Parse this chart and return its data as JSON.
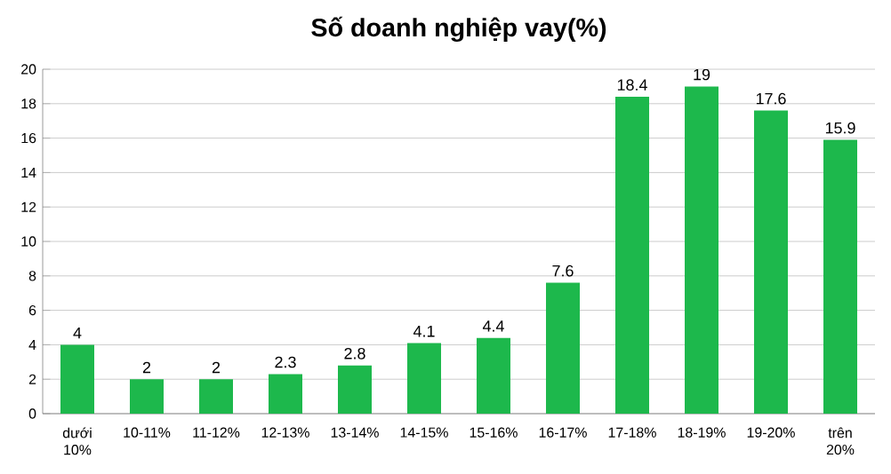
{
  "chart_data": {
    "type": "bar",
    "title": "Số doanh nghiệp vay(%)",
    "categories": [
      "dưới 10%",
      "10-11%",
      "11-12%",
      "12-13%",
      "13-14%",
      "14-15%",
      "15-16%",
      "16-17%",
      "17-18%",
      "18-19%",
      "19-20%",
      "trên 20%"
    ],
    "values": [
      4,
      2,
      2,
      2.3,
      2.8,
      4.1,
      4.4,
      7.6,
      18.4,
      19,
      17.6,
      15.9
    ],
    "color": "#1db84c",
    "ylim": [
      0,
      20
    ],
    "yticks": [
      0,
      2,
      4,
      6,
      8,
      10,
      12,
      14,
      16,
      18,
      20
    ],
    "grid": "y",
    "data_labels": true
  }
}
